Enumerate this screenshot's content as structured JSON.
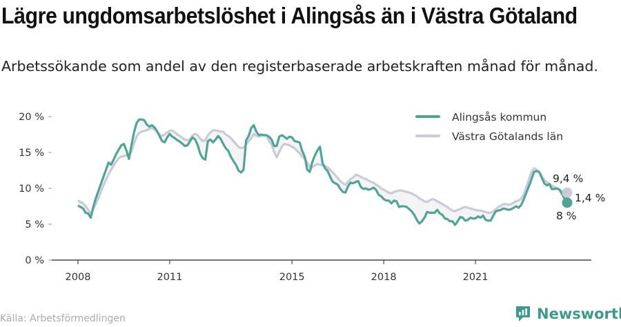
{
  "header": {
    "title": "Lägre ungdomsarbetslöshet i Alingsås än i Västra Götaland",
    "subtitle": "Arbetssökande som andel av den registerbaserade arbetskraften månad för månad."
  },
  "footer": {
    "source": "Källa: Arbetsförmedlingen",
    "brand": "Newsworthy"
  },
  "colors": {
    "kommun": "#4fa595",
    "lan": "#cccad6",
    "gap_fill": "#f4f4f4",
    "axis": "#222222",
    "grid": "#e6e6e6",
    "brand": "#3d9a8b"
  },
  "chart_data": {
    "type": "line",
    "x_unit": "month",
    "ylim": [
      0,
      20
    ],
    "yticks": [
      0,
      5,
      10,
      15,
      20
    ],
    "ytick_labels": [
      "0 %",
      "5 %",
      "10 %",
      "15 %",
      "20 %"
    ],
    "xtick_years": [
      2008,
      2011,
      2015,
      2018,
      2021
    ],
    "xtick_labels": [
      "2008",
      "2011",
      "2015",
      "2018",
      "2021"
    ],
    "x_start": "2008-01",
    "legend_position": "top-right",
    "grid": false,
    "series": [
      {
        "name": "Alingsås kommun",
        "key": "kommun",
        "end_label": "8 %",
        "values": [
          7.6,
          7.4,
          7.2,
          6.6,
          6.5,
          5.9,
          7.4,
          8.6,
          9.6,
          10.6,
          11.6,
          12.6,
          13.6,
          13.3,
          14.0,
          14.8,
          15.4,
          16.0,
          16.2,
          15.3,
          14.1,
          16.0,
          17.8,
          19.1,
          19.6,
          19.6,
          19.5,
          18.9,
          18.6,
          18.8,
          18.5,
          18.0,
          17.3,
          16.6,
          16.4,
          17.1,
          17.6,
          17.2,
          17.0,
          16.7,
          16.5,
          16.2,
          15.9,
          16.0,
          16.6,
          17.1,
          16.8,
          16.0,
          14.8,
          14.2,
          14.0,
          16.6,
          16.8,
          16.4,
          16.8,
          17.3,
          16.9,
          16.2,
          15.6,
          15.2,
          14.4,
          13.8,
          13.3,
          12.5,
          12.2,
          12.6,
          16.7,
          17.3,
          18.4,
          18.8,
          17.9,
          17.4,
          17.5,
          17.4,
          17.4,
          17.2,
          16.8,
          15.9,
          15.9,
          17.2,
          17.4,
          17.2,
          16.9,
          17.2,
          17.1,
          16.6,
          16.5,
          16.4,
          15.2,
          14.4,
          12.6,
          12.3,
          13.7,
          14.6,
          15.3,
          15.8,
          13.5,
          12.8,
          12.4,
          11.6,
          10.9,
          10.7,
          10.5,
          9.9,
          9.5,
          9.4,
          10.3,
          10.8,
          10.7,
          10.9,
          11.0,
          10.2,
          9.9,
          10.0,
          9.8,
          9.9,
          10.1,
          9.8,
          9.1,
          8.9,
          8.5,
          8.3,
          8.3,
          7.9,
          8.3,
          8.2,
          7.4,
          7.5,
          7.5,
          7.4,
          7.1,
          6.8,
          6.3,
          5.6,
          5.1,
          5.4,
          5.9,
          6.7,
          6.6,
          6.6,
          6.6,
          7.0,
          6.5,
          6.3,
          5.8,
          5.7,
          5.4,
          5.4,
          4.9,
          5.4,
          6.0,
          5.9,
          5.5,
          5.6,
          5.9,
          5.8,
          5.8,
          6.1,
          5.9,
          6.2,
          5.6,
          5.5,
          5.5,
          6.2,
          6.8,
          6.9,
          7.0,
          7.2,
          7.1,
          7.0,
          7.1,
          7.3,
          7.5,
          7.3,
          7.7,
          8.5,
          9.4,
          10.3,
          11.3,
          12.3,
          12.4,
          12.3,
          11.5,
          10.7,
          10.4,
          10.6,
          9.9,
          9.9,
          10.0,
          9.8,
          9.2,
          8.5,
          8.0
        ]
      },
      {
        "name": "Västra Götalands län",
        "key": "lan",
        "end_label": "9,4 %",
        "values": [
          8.3,
          8.1,
          7.9,
          7.5,
          7.0,
          6.5,
          7.1,
          7.8,
          8.6,
          9.5,
          10.4,
          11.2,
          11.9,
          12.6,
          13.2,
          13.7,
          14.2,
          14.4,
          14.5,
          14.6,
          14.7,
          15.1,
          16.2,
          17.2,
          17.7,
          17.9,
          18.0,
          18.1,
          18.3,
          18.4,
          18.2,
          17.9,
          17.5,
          17.3,
          17.5,
          17.8,
          18.0,
          18.1,
          17.8,
          17.5,
          17.3,
          17.0,
          16.8,
          16.7,
          16.9,
          17.4,
          17.6,
          17.4,
          16.9,
          16.6,
          16.7,
          17.4,
          17.8,
          18.1,
          18.1,
          18.0,
          17.9,
          17.9,
          17.5,
          17.3,
          17.0,
          16.6,
          16.2,
          15.8,
          15.6,
          15.7,
          16.1,
          16.6,
          17.0,
          17.6,
          17.3,
          17.2,
          17.3,
          17.4,
          17.3,
          16.6,
          16.1,
          15.1,
          14.3,
          15.1,
          15.8,
          16.2,
          16.1,
          16.0,
          15.8,
          15.6,
          15.2,
          14.9,
          14.4,
          14.1,
          13.6,
          13.0,
          12.9,
          13.2,
          13.4,
          13.3,
          13.2,
          13.1,
          12.9,
          12.6,
          12.2,
          11.8,
          11.4,
          11.0,
          10.7,
          10.5,
          10.9,
          11.3,
          11.5,
          11.9,
          11.8,
          11.6,
          11.4,
          11.3,
          11.1,
          10.9,
          10.8,
          10.5,
          10.3,
          10.0,
          9.8,
          9.6,
          9.4,
          9.3,
          9.5,
          9.6,
          9.7,
          9.7,
          9.6,
          9.5,
          9.4,
          9.3,
          9.1,
          8.9,
          8.6,
          8.4,
          8.2,
          8.1,
          8.3,
          8.5,
          8.4,
          8.2,
          8.0,
          7.8,
          7.6,
          7.4,
          7.1,
          6.9,
          6.8,
          7.0,
          7.1,
          7.3,
          7.4,
          7.3,
          7.2,
          7.1,
          7.0,
          6.9,
          6.9,
          6.8,
          6.7,
          6.6,
          6.6,
          6.8,
          7.1,
          7.4,
          7.6,
          7.8,
          7.8,
          7.7,
          7.8,
          8.0,
          8.2,
          8.3,
          8.6,
          9.2,
          10.2,
          11.3,
          12.3,
          12.8,
          12.6,
          12.2,
          11.7,
          11.2,
          10.9,
          10.6,
          10.4,
          10.2,
          10.0,
          9.8,
          9.6,
          9.5,
          9.4
        ]
      }
    ]
  }
}
